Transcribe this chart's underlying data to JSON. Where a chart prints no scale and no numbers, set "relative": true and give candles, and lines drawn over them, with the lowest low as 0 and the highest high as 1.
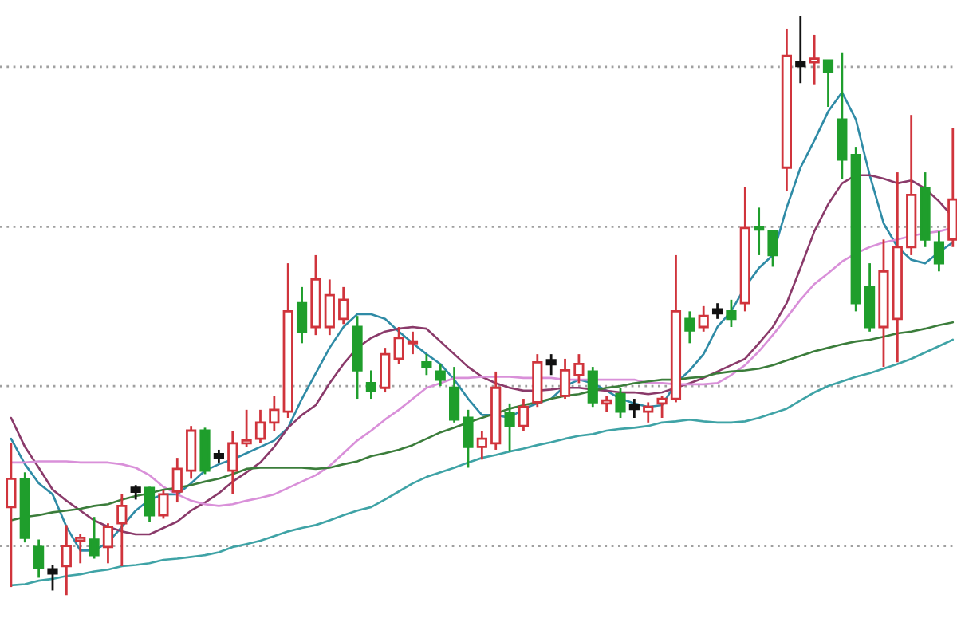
{
  "chart_data": {
    "type": "candlestick",
    "relative": true,
    "categories": [
      null,
      null,
      null,
      null,
      null,
      null,
      null,
      null,
      null,
      null,
      null,
      null,
      null,
      null,
      null,
      null,
      null,
      null,
      null,
      null,
      null,
      null,
      null,
      null,
      null,
      null,
      null,
      null,
      null,
      null,
      null,
      null,
      null,
      null,
      null,
      null,
      null,
      null,
      null,
      null,
      null,
      null,
      null,
      null,
      null,
      null,
      null,
      null,
      null,
      null,
      null,
      null,
      null,
      null,
      null,
      null,
      null,
      null,
      null,
      null,
      null,
      null,
      null,
      null,
      null,
      null,
      null,
      null,
      null
    ],
    "ohlc": [
      [
        0.152,
        0.262,
        0.014,
        0.201
      ],
      [
        0.201,
        0.212,
        0.091,
        0.099
      ],
      [
        0.083,
        0.096,
        0.03,
        0.047
      ],
      [
        0.041,
        0.052,
        0.008,
        0.041
      ],
      [
        0.05,
        0.121,
        0,
        0.085
      ],
      [
        0.094,
        0.105,
        0.055,
        0.099
      ],
      [
        0.096,
        0.135,
        0.063,
        0.069
      ],
      [
        0.083,
        0.124,
        0.055,
        0.118
      ],
      [
        0.124,
        0.174,
        0.05,
        0.154
      ],
      [
        0.182,
        0.19,
        0.165,
        0.182
      ],
      [
        0.185,
        0.187,
        0.127,
        0.138
      ],
      [
        0.138,
        0.182,
        0.132,
        0.174
      ],
      [
        0.179,
        0.237,
        0.16,
        0.218
      ],
      [
        0.215,
        0.292,
        0.201,
        0.284
      ],
      [
        0.284,
        0.289,
        0.209,
        0.215
      ],
      [
        0.24,
        0.251,
        0.229,
        0.24
      ],
      [
        0.215,
        0.284,
        0.174,
        0.262
      ],
      [
        0.262,
        0.32,
        0.256,
        0.267
      ],
      [
        0.27,
        0.32,
        0.262,
        0.298
      ],
      [
        0.298,
        0.344,
        0.284,
        0.32
      ],
      [
        0.317,
        0.573,
        0.306,
        0.49
      ],
      [
        0.504,
        0.532,
        0.435,
        0.455
      ],
      [
        0.463,
        0.587,
        0.449,
        0.545
      ],
      [
        0.463,
        0.545,
        0.449,
        0.518
      ],
      [
        0.477,
        0.532,
        0.468,
        0.51
      ],
      [
        0.463,
        0.482,
        0.339,
        0.388
      ],
      [
        0.366,
        0.388,
        0.339,
        0.353
      ],
      [
        0.358,
        0.427,
        0.35,
        0.416
      ],
      [
        0.408,
        0.463,
        0.399,
        0.444
      ],
      [
        0.435,
        0.455,
        0.416,
        0.438
      ],
      [
        0.402,
        0.416,
        0.38,
        0.394
      ],
      [
        0.386,
        0.399,
        0.361,
        0.372
      ],
      [
        0.358,
        0.394,
        0.298,
        0.303
      ],
      [
        0.306,
        0.32,
        0.22,
        0.256
      ],
      [
        0.256,
        0.284,
        0.234,
        0.27
      ],
      [
        0.262,
        0.386,
        0.251,
        0.358
      ],
      [
        0.314,
        0.331,
        0.248,
        0.292
      ],
      [
        0.292,
        0.339,
        0.284,
        0.325
      ],
      [
        0.333,
        0.416,
        0.325,
        0.402
      ],
      [
        0.402,
        0.416,
        0.38,
        0.402
      ],
      [
        0.344,
        0.408,
        0.339,
        0.388
      ],
      [
        0.38,
        0.416,
        0.366,
        0.399
      ],
      [
        0.386,
        0.394,
        0.325,
        0.333
      ],
      [
        0.331,
        0.344,
        0.317,
        0.336
      ],
      [
        0.347,
        0.358,
        0.306,
        0.317
      ],
      [
        0.325,
        0.339,
        0.306,
        0.325
      ],
      [
        0.317,
        0.333,
        0.298,
        0.325
      ],
      [
        0.331,
        0.344,
        0.306,
        0.339
      ],
      [
        0.339,
        0.587,
        0.333,
        0.49
      ],
      [
        0.477,
        0.49,
        0.435,
        0.457
      ],
      [
        0.463,
        0.499,
        0.455,
        0.482
      ],
      [
        0.49,
        0.504,
        0.477,
        0.49
      ],
      [
        0.49,
        0.51,
        0.463,
        0.477
      ],
      [
        0.504,
        0.705,
        0.49,
        0.634
      ],
      [
        0.636,
        0.669,
        0.587,
        0.631
      ],
      [
        0.628,
        0.628,
        0.567,
        0.587
      ],
      [
        0.738,
        0.978,
        0.697,
        0.931
      ],
      [
        0.917,
        1,
        0.884,
        0.917
      ],
      [
        0.92,
        0.967,
        0.882,
        0.926
      ],
      [
        0.923,
        0.923,
        0.843,
        0.904
      ],
      [
        0.821,
        0.937,
        0.719,
        0.752
      ],
      [
        0.76,
        0.774,
        0.49,
        0.504
      ],
      [
        0.532,
        0.573,
        0.455,
        0.463
      ],
      [
        0.463,
        0.614,
        0.394,
        0.559
      ],
      [
        0.477,
        0.73,
        0.402,
        0.601
      ],
      [
        0.601,
        0.829,
        0.587,
        0.691
      ],
      [
        0.702,
        0.73,
        0.601,
        0.614
      ],
      [
        0.609,
        0.628,
        0.559,
        0.573
      ],
      [
        0.614,
        0.807,
        0.601,
        0.683
      ]
    ],
    "colors": [
      "#d0343c",
      "#1f9e2c",
      "#1f9e2c",
      "#111111",
      "#d0343c",
      "#d0343c",
      "#1f9e2c",
      "#d0343c",
      "#d0343c",
      "#111111",
      "#1f9e2c",
      "#d0343c",
      "#d0343c",
      "#d0343c",
      "#1f9e2c",
      "#111111",
      "#d0343c",
      "#d0343c",
      "#d0343c",
      "#d0343c",
      "#d0343c",
      "#1f9e2c",
      "#d0343c",
      "#d0343c",
      "#d0343c",
      "#1f9e2c",
      "#1f9e2c",
      "#d0343c",
      "#d0343c",
      "#d0343c",
      "#1f9e2c",
      "#1f9e2c",
      "#1f9e2c",
      "#1f9e2c",
      "#d0343c",
      "#d0343c",
      "#1f9e2c",
      "#d0343c",
      "#d0343c",
      "#111111",
      "#d0343c",
      "#d0343c",
      "#1f9e2c",
      "#d0343c",
      "#1f9e2c",
      "#111111",
      "#d0343c",
      "#d0343c",
      "#d0343c",
      "#1f9e2c",
      "#d0343c",
      "#111111",
      "#1f9e2c",
      "#d0343c",
      "#1f9e2c",
      "#1f9e2c",
      "#d0343c",
      "#111111",
      "#d0343c",
      "#1f9e2c",
      "#1f9e2c",
      "#1f9e2c",
      "#1f9e2c",
      "#d0343c",
      "#d0343c",
      "#d0343c",
      "#1f9e2c",
      "#1f9e2c",
      "#d0343c"
    ],
    "series": [
      {
        "type": "line",
        "color": "#2f8ba6",
        "values": [
          0.27,
          0.226,
          0.193,
          0.174,
          0.118,
          0.077,
          0.077,
          0.091,
          0.118,
          0.146,
          0.165,
          0.174,
          0.174,
          0.193,
          0.215,
          0.226,
          0.234,
          0.245,
          0.256,
          0.267,
          0.289,
          0.339,
          0.383,
          0.427,
          0.463,
          0.485,
          0.485,
          0.477,
          0.455,
          0.435,
          0.416,
          0.399,
          0.372,
          0.339,
          0.311,
          0.311,
          0.306,
          0.322,
          0.331,
          0.339,
          0.361,
          0.372,
          0.366,
          0.353,
          0.339,
          0.331,
          0.325,
          0.328,
          0.366,
          0.388,
          0.416,
          0.463,
          0.49,
          0.532,
          0.565,
          0.587,
          0.669,
          0.738,
          0.785,
          0.835,
          0.868,
          0.821,
          0.725,
          0.642,
          0.601,
          0.579,
          0.573,
          0.592,
          0.609
        ]
      },
      {
        "type": "line",
        "color": "#8a3a6a",
        "values": [
          0.306,
          0.256,
          0.22,
          0.182,
          0.163,
          0.146,
          0.129,
          0.118,
          0.11,
          0.105,
          0.105,
          0.116,
          0.127,
          0.146,
          0.16,
          0.176,
          0.196,
          0.212,
          0.229,
          0.256,
          0.289,
          0.311,
          0.328,
          0.366,
          0.399,
          0.427,
          0.444,
          0.455,
          0.46,
          0.463,
          0.46,
          0.438,
          0.416,
          0.394,
          0.377,
          0.366,
          0.358,
          0.353,
          0.353,
          0.355,
          0.358,
          0.358,
          0.355,
          0.353,
          0.35,
          0.35,
          0.347,
          0.35,
          0.358,
          0.366,
          0.375,
          0.386,
          0.397,
          0.408,
          0.435,
          0.463,
          0.504,
          0.565,
          0.628,
          0.675,
          0.711,
          0.725,
          0.725,
          0.719,
          0.711,
          0.716,
          0.702,
          0.68,
          0.653
        ]
      },
      {
        "type": "line",
        "color": "#d990d9",
        "values": [
          0.229,
          0.229,
          0.231,
          0.231,
          0.231,
          0.229,
          0.229,
          0.229,
          0.226,
          0.22,
          0.207,
          0.187,
          0.174,
          0.163,
          0.157,
          0.154,
          0.157,
          0.163,
          0.168,
          0.174,
          0.185,
          0.196,
          0.207,
          0.223,
          0.245,
          0.267,
          0.284,
          0.303,
          0.32,
          0.339,
          0.358,
          0.366,
          0.375,
          0.375,
          0.377,
          0.377,
          0.377,
          0.375,
          0.375,
          0.375,
          0.372,
          0.372,
          0.372,
          0.372,
          0.372,
          0.372,
          0.366,
          0.366,
          0.364,
          0.364,
          0.364,
          0.366,
          0.38,
          0.397,
          0.421,
          0.449,
          0.479,
          0.51,
          0.537,
          0.556,
          0.576,
          0.59,
          0.601,
          0.609,
          0.614,
          0.62,
          0.625,
          0.628,
          0.634
        ]
      },
      {
        "type": "line",
        "color": "#3b7d3b",
        "values": [
          0.129,
          0.135,
          0.138,
          0.143,
          0.146,
          0.149,
          0.154,
          0.157,
          0.165,
          0.171,
          0.176,
          0.182,
          0.185,
          0.19,
          0.196,
          0.201,
          0.209,
          0.218,
          0.22,
          0.22,
          0.22,
          0.22,
          0.218,
          0.22,
          0.226,
          0.231,
          0.24,
          0.245,
          0.251,
          0.259,
          0.27,
          0.281,
          0.289,
          0.298,
          0.306,
          0.314,
          0.322,
          0.328,
          0.333,
          0.339,
          0.344,
          0.347,
          0.353,
          0.358,
          0.361,
          0.366,
          0.369,
          0.372,
          0.372,
          0.375,
          0.377,
          0.383,
          0.386,
          0.388,
          0.391,
          0.397,
          0.405,
          0.413,
          0.421,
          0.427,
          0.433,
          0.438,
          0.441,
          0.446,
          0.452,
          0.455,
          0.46,
          0.466,
          0.471
        ]
      },
      {
        "type": "line",
        "color": "#3fa3a6",
        "values": [
          0.017,
          0.019,
          0.025,
          0.028,
          0.033,
          0.036,
          0.041,
          0.044,
          0.05,
          0.052,
          0.055,
          0.061,
          0.063,
          0.066,
          0.069,
          0.074,
          0.083,
          0.088,
          0.094,
          0.102,
          0.11,
          0.116,
          0.121,
          0.129,
          0.138,
          0.146,
          0.152,
          0.165,
          0.179,
          0.193,
          0.204,
          0.212,
          0.22,
          0.229,
          0.237,
          0.242,
          0.248,
          0.253,
          0.259,
          0.264,
          0.27,
          0.275,
          0.278,
          0.284,
          0.287,
          0.289,
          0.292,
          0.298,
          0.3,
          0.303,
          0.3,
          0.298,
          0.298,
          0.3,
          0.306,
          0.314,
          0.322,
          0.336,
          0.35,
          0.361,
          0.369,
          0.377,
          0.383,
          0.391,
          0.399,
          0.408,
          0.419,
          0.43,
          0.441
        ]
      }
    ],
    "ref_lines": [
      {
        "axis": "y",
        "value": 0.912,
        "color": "#a0a0a0",
        "line_style": "dotted"
      },
      {
        "axis": "y",
        "value": 0.636,
        "color": "#a0a0a0",
        "line_style": "dotted"
      },
      {
        "axis": "y",
        "value": 0.361,
        "color": "#a0a0a0",
        "line_style": "dotted"
      },
      {
        "axis": "y",
        "value": 0.085,
        "color": "#a0a0a0",
        "line_style": "dotted"
      }
    ]
  }
}
